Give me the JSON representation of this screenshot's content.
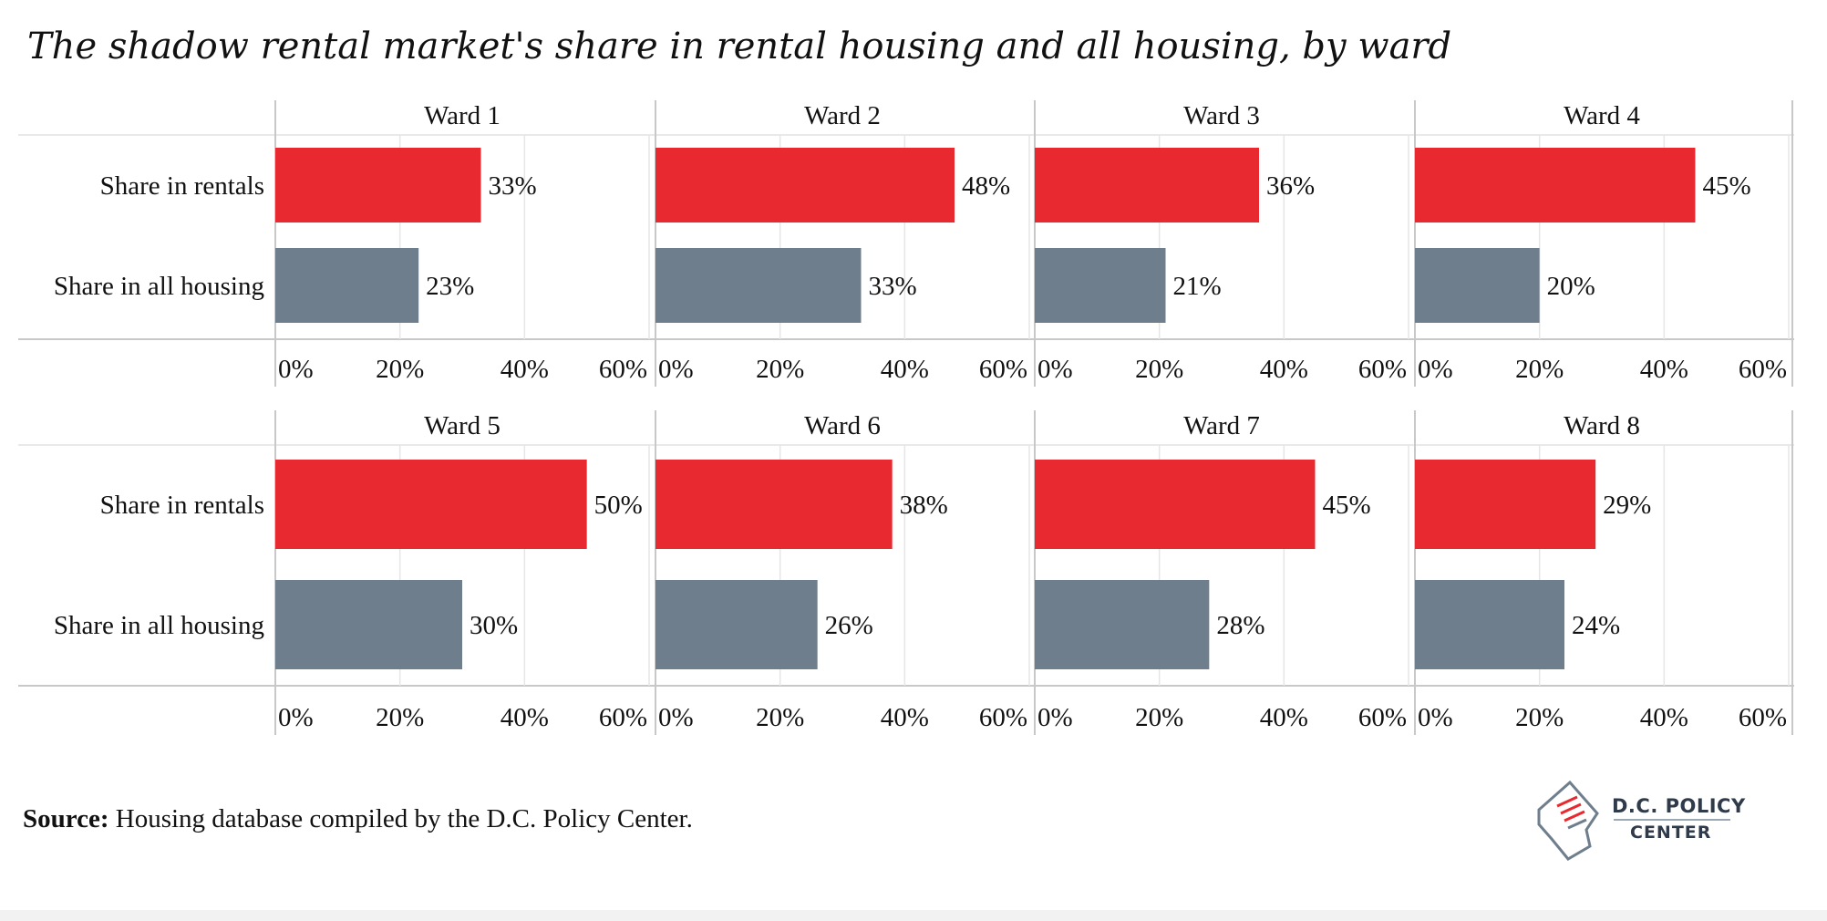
{
  "title": "The shadow rental market's share in rental housing and all housing, by ward",
  "source": {
    "label": "Source:",
    "text": " Housing database compiled by the D.C. Policy Center."
  },
  "logo": {
    "line1": "D.C. POLICY",
    "line2": "CENTER"
  },
  "colors": {
    "rentals": "#e8292f",
    "all_housing": "#6e7e8c",
    "grid": "#e6e6e6",
    "axis": "#c8c8c8"
  },
  "chart_data": {
    "type": "bar",
    "orientation": "horizontal",
    "categories": [
      "Share in rentals",
      "Share in all housing"
    ],
    "xlim": [
      0,
      60
    ],
    "x_ticks": [
      "0%",
      "20%",
      "40%",
      "60%"
    ],
    "grid": true,
    "panels": [
      {
        "name": "Ward 1",
        "values": [
          33,
          23
        ],
        "labels": [
          "33%",
          "23%"
        ]
      },
      {
        "name": "Ward 2",
        "values": [
          48,
          33
        ],
        "labels": [
          "48%",
          "33%"
        ]
      },
      {
        "name": "Ward 3",
        "values": [
          36,
          21
        ],
        "labels": [
          "36%",
          "21%"
        ]
      },
      {
        "name": "Ward 4",
        "values": [
          45,
          20
        ],
        "labels": [
          "45%",
          "20%"
        ]
      },
      {
        "name": "Ward 5",
        "values": [
          50,
          30
        ],
        "labels": [
          "50%",
          "30%"
        ]
      },
      {
        "name": "Ward 6",
        "values": [
          38,
          26
        ],
        "labels": [
          "38%",
          "26%"
        ]
      },
      {
        "name": "Ward 7",
        "values": [
          45,
          28
        ],
        "labels": [
          "45%",
          "28%"
        ]
      },
      {
        "name": "Ward 8",
        "values": [
          29,
          24
        ],
        "labels": [
          "29%",
          "24%"
        ]
      }
    ]
  }
}
